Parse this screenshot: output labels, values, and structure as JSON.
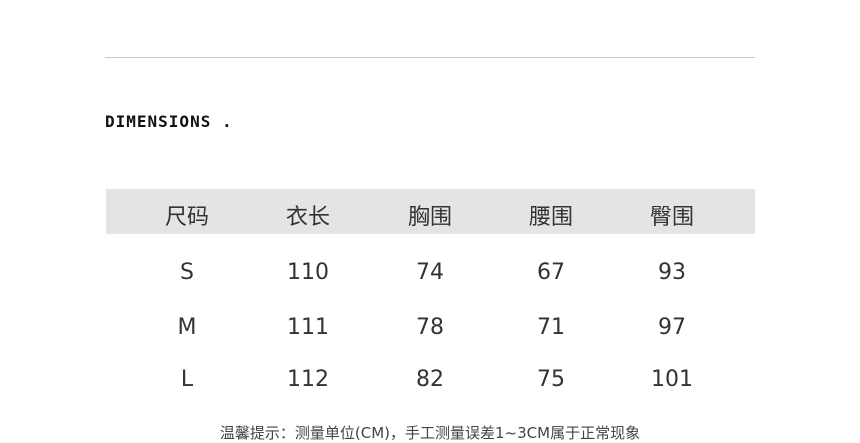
{
  "title": "DIMENSIONS .",
  "table": {
    "headers": [
      "尺码",
      "衣长",
      "胸围",
      "腰围",
      "臀围"
    ],
    "rows": [
      [
        "S",
        "110",
        "74",
        "67",
        "93"
      ],
      [
        "M",
        "111",
        "78",
        "71",
        "97"
      ],
      [
        "L",
        "112",
        "82",
        "75",
        "101"
      ]
    ]
  },
  "note": "温馨提示：测量单位(CM)，手工测量误差1~3CM属于正常现象"
}
